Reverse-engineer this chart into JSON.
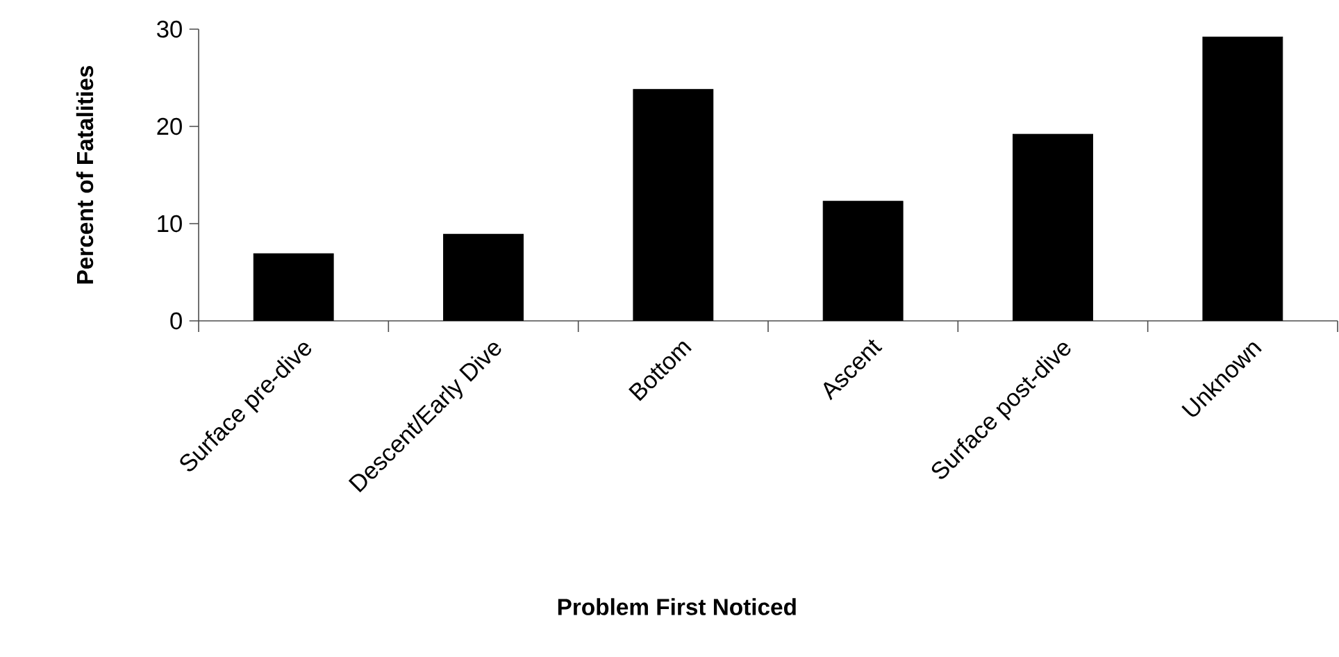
{
  "chart_data": {
    "type": "bar",
    "xlabel": "Problem First Noticed",
    "ylabel": "Percent of Fatalities",
    "categories": [
      "Surface pre-dive",
      "Descent/Early Dive",
      "Bottom",
      "Ascent",
      "Surface post-dive",
      "Unknown"
    ],
    "values": [
      6.9,
      8.9,
      23.8,
      12.3,
      19.2,
      29.2
    ],
    "color": "#000000",
    "ylim": [
      0,
      30
    ],
    "yticks": [
      0,
      10,
      20,
      30
    ],
    "grid": false
  }
}
